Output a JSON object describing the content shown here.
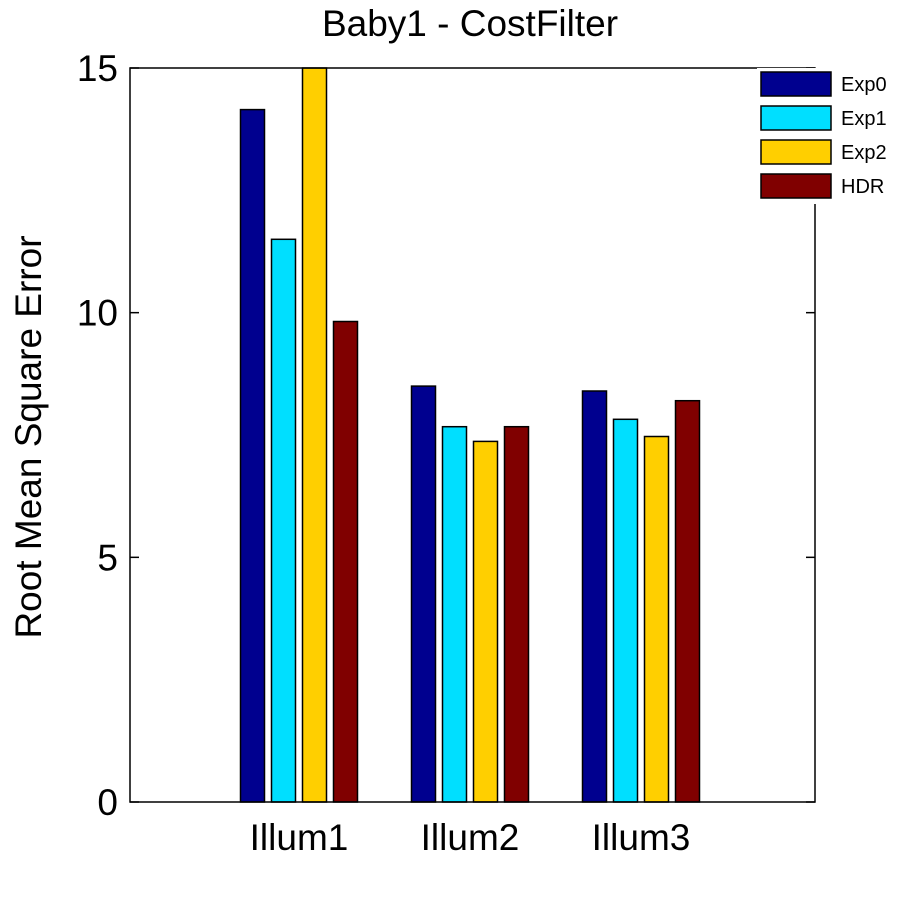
{
  "chart_data": {
    "type": "bar",
    "title": "Baby1 - CostFilter",
    "xlabel": "",
    "ylabel": "Root Mean Square Error",
    "categories": [
      "Illum1",
      "Illum2",
      "Illum3"
    ],
    "ylim": [
      0,
      15
    ],
    "yticks": [
      "0",
      "5",
      "10",
      "15"
    ],
    "grid": false,
    "legend_position": "top-right",
    "series": [
      {
        "name": "Exp0",
        "color": "#00008f",
        "values": [
          14.15,
          8.5,
          8.4
        ]
      },
      {
        "name": "Exp1",
        "color": "#00dfff",
        "values": [
          11.5,
          7.67,
          7.82
        ]
      },
      {
        "name": "Exp2",
        "color": "#ffcf00",
        "values": [
          15.0,
          7.37,
          7.47
        ]
      },
      {
        "name": "HDR",
        "color": "#800000",
        "values": [
          9.82,
          7.67,
          8.2
        ]
      }
    ]
  }
}
